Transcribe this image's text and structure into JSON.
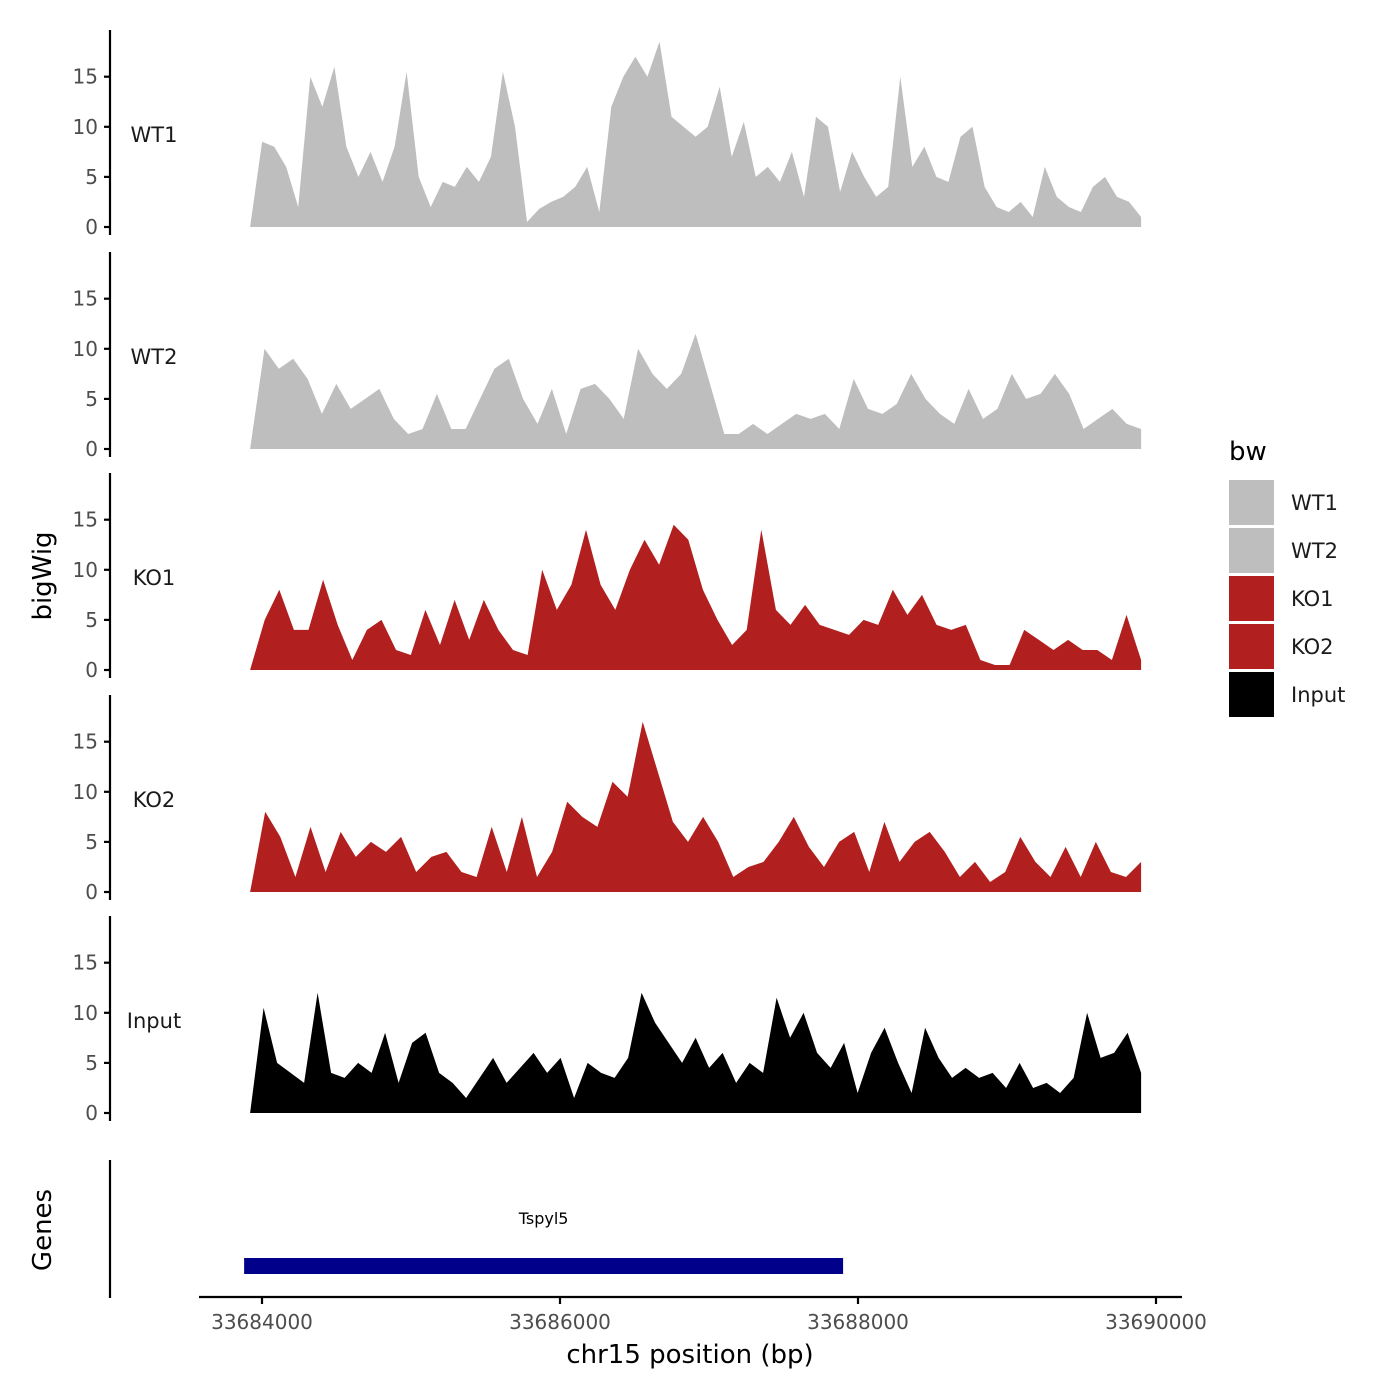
{
  "chart_data": {
    "type": "area",
    "xlabel": "chr15 position (bp)",
    "ylabel": "bigWig",
    "genes_label": "Genes",
    "xlim": [
      33683800,
      33690100
    ],
    "x_ticks": [
      33684000,
      33686000,
      33688000,
      33690000
    ],
    "x_tick_labels": [
      "33684000",
      "33686000",
      "33688000",
      "33690000"
    ],
    "ylim": [
      0,
      19
    ],
    "y_ticks": [
      0,
      5,
      10,
      15
    ],
    "y_tick_labels": [
      "0",
      "5",
      "10",
      "15"
    ],
    "legend": {
      "title": "bw",
      "placement": "right",
      "entries": [
        {
          "label": "WT1",
          "color": "#bebebe"
        },
        {
          "label": "WT2",
          "color": "#bebebe"
        },
        {
          "label": "KO1",
          "color": "#b21f1f"
        },
        {
          "label": "KO2",
          "color": "#b21f1f"
        },
        {
          "label": "Input",
          "color": "#000000"
        }
      ]
    },
    "series": [
      {
        "name": "WT1",
        "color": "#bebebe",
        "x_start": 33683920,
        "x_end": 33689900,
        "values": [
          0,
          8.5,
          8,
          6,
          2,
          15,
          12,
          16,
          8,
          5,
          7.5,
          4.5,
          8,
          15.5,
          5,
          2,
          4.5,
          4,
          6,
          4.5,
          7,
          15.5,
          10,
          0.5,
          1.8,
          2.5,
          3,
          4,
          6,
          1.5,
          12,
          15,
          17,
          15,
          18.5,
          11,
          10,
          9,
          10,
          14,
          7,
          10.5,
          5,
          6,
          4.5,
          7.5,
          3,
          11,
          10,
          3.5,
          7.5,
          5,
          3,
          4,
          15,
          6,
          8,
          5,
          4.5,
          9,
          10,
          4,
          2,
          1.5,
          2.5,
          1,
          6,
          3,
          2,
          1.5,
          4,
          5,
          3,
          2.5,
          1
        ]
      },
      {
        "name": "WT2",
        "color": "#bebebe",
        "x_start": 33683920,
        "x_end": 33689900,
        "values": [
          0,
          10,
          8,
          9,
          7,
          3.5,
          6.5,
          4,
          5,
          6,
          3,
          1.5,
          2,
          5.5,
          2,
          2,
          5,
          8,
          9,
          5,
          2.5,
          6,
          1.5,
          6,
          6.5,
          5,
          3,
          10,
          7.5,
          6,
          7.5,
          11.5,
          6.5,
          1.5,
          1.5,
          2.5,
          1.5,
          2.5,
          3.5,
          3,
          3.5,
          2,
          7,
          4,
          3.5,
          4.5,
          7.5,
          5,
          3.5,
          2.5,
          6,
          3,
          4,
          7.5,
          5,
          5.5,
          7.5,
          5.5,
          2,
          3,
          4,
          2.5,
          2
        ]
      },
      {
        "name": "KO1",
        "color": "#b21f1f",
        "x_start": 33683920,
        "x_end": 33689900,
        "values": [
          0,
          5,
          8,
          4,
          4,
          9,
          4.5,
          1,
          4,
          5,
          2,
          1.5,
          6,
          2.5,
          7,
          3,
          7,
          4,
          2,
          1.5,
          10,
          6,
          8.5,
          14,
          8.5,
          6,
          10,
          13,
          10.5,
          14.5,
          13,
          8,
          5,
          2.5,
          4,
          14,
          6,
          4.5,
          6.5,
          4.5,
          4,
          3.5,
          5,
          4.5,
          8,
          5.5,
          7.5,
          4.5,
          4,
          4.5,
          1,
          0.5,
          0.5,
          4,
          3,
          2,
          3,
          2,
          2,
          1,
          5.5,
          1
        ]
      },
      {
        "name": "KO2",
        "color": "#b21f1f",
        "x_start": 33683920,
        "x_end": 33689900,
        "values": [
          0,
          8,
          5.5,
          1.5,
          6.5,
          2,
          6,
          3.5,
          5,
          4,
          5.5,
          2,
          3.5,
          4,
          2,
          1.5,
          6.5,
          2,
          7.5,
          1.5,
          4,
          9,
          7.5,
          6.5,
          11,
          9.5,
          17,
          12,
          7,
          5,
          7.5,
          5,
          1.5,
          2.5,
          3,
          5,
          7.5,
          4.5,
          2.5,
          5,
          6,
          2,
          7,
          3,
          5,
          6,
          4,
          1.5,
          3,
          1,
          2,
          5.5,
          3,
          1.5,
          4.5,
          1.5,
          5,
          2,
          1.5,
          3
        ]
      },
      {
        "name": "Input",
        "color": "#000000",
        "x_start": 33683920,
        "x_end": 33689900,
        "values": [
          0,
          10.5,
          5,
          4,
          3,
          12,
          4,
          3.5,
          5,
          4,
          8,
          3,
          7,
          8,
          4,
          3,
          1.5,
          3.5,
          5.5,
          3,
          4.5,
          6,
          4,
          5.5,
          1.5,
          5,
          4,
          3.5,
          5.5,
          12,
          9,
          7,
          5,
          7.5,
          4.5,
          6,
          3,
          5,
          4,
          11.5,
          7.5,
          10,
          6,
          4.5,
          7,
          2,
          6,
          8.5,
          5,
          2,
          8.5,
          5.5,
          3.5,
          4.5,
          3.5,
          4,
          2.5,
          5,
          2.5,
          3,
          2,
          3.5,
          10,
          5.5,
          6,
          8,
          4
        ]
      }
    ],
    "genes": [
      {
        "name": "Tspyl5",
        "start": 33683880,
        "end": 33687900,
        "color": "#00008b"
      }
    ]
  }
}
